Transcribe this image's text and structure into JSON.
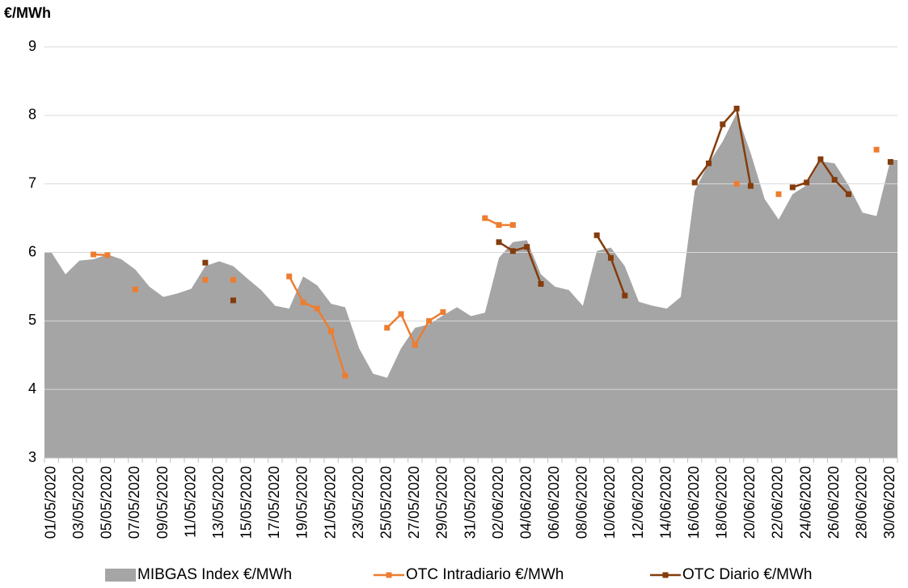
{
  "chart_data": {
    "type": "area_line",
    "y_axis_title": "€/MWh",
    "categories": [
      "01/05/2020",
      null,
      "03/05/2020",
      null,
      "05/05/2020",
      null,
      "07/05/2020",
      null,
      "09/05/2020",
      null,
      "11/05/2020",
      null,
      "13/05/2020",
      null,
      "15/05/2020",
      null,
      "17/05/2020",
      null,
      "19/05/2020",
      null,
      "21/05/2020",
      null,
      "23/05/2020",
      null,
      "25/05/2020",
      null,
      "27/05/2020",
      null,
      "29/05/2020",
      null,
      "31/05/2020",
      null,
      "02/06/2020",
      null,
      "04/06/2020",
      null,
      "06/06/2020",
      null,
      "08/06/2020",
      null,
      "10/06/2020",
      null,
      "12/06/2020",
      null,
      "14/06/2020",
      null,
      "16/06/2020",
      null,
      "18/06/2020",
      null,
      "20/06/2020",
      null,
      "22/06/2020",
      null,
      "24/06/2020",
      null,
      "26/06/2020",
      null,
      "28/06/2020",
      null,
      "30/06/2020"
    ],
    "series": [
      {
        "name": "MIBGAS Index €/MWh",
        "kind": "area",
        "color": "#a5a5a5",
        "values": [
          6.0,
          5.68,
          5.88,
          5.9,
          5.97,
          5.9,
          5.75,
          5.5,
          5.35,
          5.4,
          5.47,
          5.8,
          5.87,
          5.8,
          5.62,
          5.45,
          5.22,
          5.18,
          5.65,
          5.52,
          5.25,
          5.2,
          4.6,
          4.23,
          4.17,
          4.6,
          4.9,
          4.95,
          5.08,
          5.2,
          5.07,
          5.12,
          5.92,
          6.15,
          6.18,
          5.68,
          5.5,
          5.45,
          5.22,
          6.02,
          6.07,
          5.8,
          5.28,
          5.22,
          5.18,
          5.35,
          6.9,
          7.3,
          7.62,
          8.03,
          7.45,
          6.78,
          6.48,
          6.85,
          6.98,
          7.33,
          7.3,
          6.98,
          6.58,
          6.53,
          7.35
        ]
      },
      {
        "name": "OTC Intradiario €/MWh",
        "kind": "line",
        "color": "#ed7d31",
        "values": [
          null,
          null,
          null,
          5.97,
          5.96,
          null,
          5.46,
          null,
          null,
          null,
          null,
          5.6,
          null,
          5.6,
          null,
          null,
          null,
          5.65,
          5.27,
          5.18,
          4.85,
          4.2,
          null,
          null,
          4.9,
          5.1,
          4.65,
          5.0,
          5.13,
          null,
          null,
          6.5,
          6.4,
          6.4,
          null,
          null,
          null,
          null,
          null,
          null,
          null,
          null,
          null,
          null,
          null,
          null,
          null,
          null,
          null,
          7.0,
          null,
          null,
          6.85,
          null,
          null,
          null,
          null,
          null,
          null,
          7.5,
          null
        ]
      },
      {
        "name": "OTC Diario €/MWh",
        "kind": "line",
        "color": "#843c0c",
        "values": [
          null,
          null,
          null,
          null,
          null,
          null,
          null,
          null,
          null,
          null,
          null,
          5.85,
          null,
          5.3,
          null,
          null,
          null,
          null,
          null,
          null,
          null,
          null,
          null,
          null,
          null,
          null,
          null,
          null,
          null,
          null,
          null,
          null,
          6.15,
          6.02,
          6.08,
          5.54,
          null,
          null,
          null,
          6.25,
          5.92,
          5.37,
          null,
          null,
          null,
          null,
          7.02,
          7.3,
          7.87,
          8.1,
          6.97,
          null,
          null,
          6.95,
          7.02,
          7.36,
          7.06,
          6.85,
          null,
          null,
          7.32
        ]
      }
    ],
    "ylim": [
      3,
      9
    ],
    "yticks": [
      3,
      4,
      5,
      6,
      7,
      8,
      9
    ],
    "grid": true,
    "legend": "bottom"
  }
}
